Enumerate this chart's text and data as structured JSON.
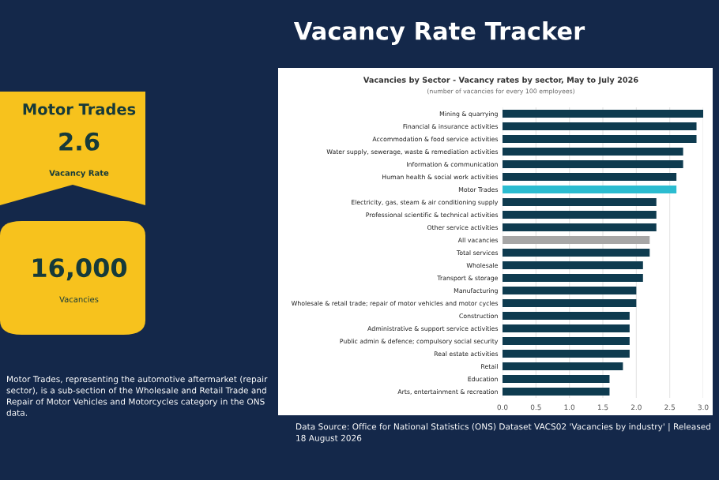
{
  "chart_data": [
    {
      "type": "other",
      "title": "Motor Trades",
      "annotations": [
        "2.6",
        "Vacancy Rate",
        "16,000",
        "Vacancies",
        "Motor Trades, representing the automotive aftermarket (repair sector), is a sub-section of the Wholesale and Retail Trade and Repair of Motor Vehicles and Motorcycles category in the ONS data."
      ]
    },
    {
      "type": "bar",
      "orientation": "horizontal",
      "title": "Vacancies by Sector - Vacancy rates by sector, May to July 2026",
      "subtitle": "(number of vacancies for every 100 employees)",
      "categories": [
        "Mining & quarrying",
        "Financial & insurance activities",
        "Accommodation & food service activities",
        "Water supply, sewerage, waste & remediation activities",
        "Information & communication",
        "Human health & social work activities",
        "Motor Trades",
        "Electricity, gas, steam & air conditioning supply",
        "Professional scientific & technical activities",
        "Other service activities",
        "All vacancies",
        "Total services",
        "Wholesale",
        "Transport & storage",
        "Manufacturing",
        "Wholesale & retail trade; repair of motor vehicles and motor cycles",
        "Construction",
        "Administrative & support service activities",
        "Public admin & defence; compulsory social security",
        "Real estate activities",
        "Retail",
        "Education",
        "Arts, entertainment & recreation"
      ],
      "values": [
        3.0,
        2.9,
        2.9,
        2.7,
        2.7,
        2.6,
        2.6,
        2.3,
        2.3,
        2.3,
        2.2,
        2.2,
        2.1,
        2.1,
        2.0,
        2.0,
        1.9,
        1.9,
        1.9,
        1.9,
        1.8,
        1.6,
        1.6
      ],
      "colors": [
        "#0e3b4f",
        "#0e3b4f",
        "#0e3b4f",
        "#0e3b4f",
        "#0e3b4f",
        "#0e3b4f",
        "#2bbcd0",
        "#0e3b4f",
        "#0e3b4f",
        "#0e3b4f",
        "#a6a6a6",
        "#0e3b4f",
        "#0e3b4f",
        "#0e3b4f",
        "#0e3b4f",
        "#0e3b4f",
        "#0e3b4f",
        "#0e3b4f",
        "#0e3b4f",
        "#0e3b4f",
        "#0e3b4f",
        "#0e3b4f",
        "#0e3b4f"
      ],
      "xlim": [
        0,
        3.0
      ],
      "xticks": [
        {
          "value": 0,
          "label": "0.0"
        },
        0.5,
        {
          "value": 1,
          "label": "1.0"
        },
        1.5,
        {
          "value": 2,
          "label": "2.0"
        },
        2.5,
        {
          "value": 3,
          "label": "3.0"
        }
      ],
      "grid": "x",
      "annotations": [
        "Vacancy Rate Tracker",
        "Data Source: Office for National Statistics (ONS) Dataset VACS02 'Vacancies by industry' | Released 18 August 2026"
      ]
    }
  ]
}
